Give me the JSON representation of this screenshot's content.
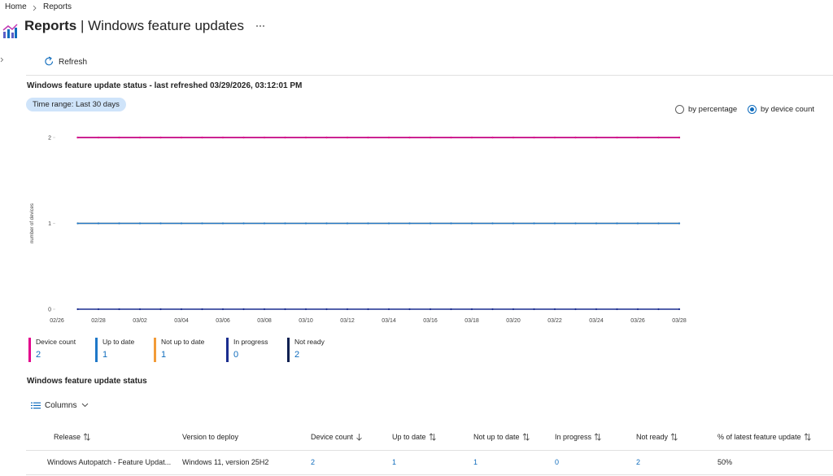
{
  "breadcrumb": [
    "Home",
    "Reports"
  ],
  "header": {
    "title": "Reports",
    "separator": "|",
    "subtitle": "Windows feature updates"
  },
  "toolbar": {
    "refresh": "Refresh"
  },
  "status_heading": "Windows feature update status - last refreshed 03/29/2026, 03:12:01 PM",
  "time_range": {
    "label": "Time range:",
    "value": "Last 30 days"
  },
  "view_options": [
    {
      "label": "by percentage",
      "selected": false
    },
    {
      "label": "by device count",
      "selected": true
    }
  ],
  "chart_data": {
    "type": "line",
    "ylabel": "number of devices",
    "categories": [
      "02/26",
      null,
      "02/28",
      null,
      "03/02",
      null,
      "03/04",
      null,
      "03/06",
      null,
      "03/08",
      null,
      "03/10",
      null,
      "03/12",
      null,
      "03/14",
      null,
      "03/16",
      null,
      "03/18",
      null,
      "03/20",
      null,
      "03/22",
      null,
      "03/24",
      null,
      "03/26",
      null,
      "03/28"
    ],
    "ylim": [
      0,
      2
    ],
    "yticks": [
      0,
      1,
      2
    ],
    "series": [
      {
        "name": "Device count",
        "color": "#e3008c",
        "values": [
          null,
          2,
          2,
          2,
          2,
          2,
          2,
          2,
          2,
          2,
          2,
          2,
          2,
          2,
          2,
          2,
          2,
          2,
          2,
          2,
          2,
          2,
          2,
          2,
          2,
          2,
          2,
          2,
          2,
          2,
          2
        ]
      },
      {
        "name": "Up to date",
        "color": "#1f78c8",
        "values": [
          null,
          1,
          1,
          1,
          1,
          1,
          1,
          1,
          1,
          1,
          1,
          1,
          1,
          1,
          1,
          1,
          1,
          1,
          1,
          1,
          1,
          1,
          1,
          1,
          1,
          1,
          1,
          1,
          1,
          1,
          1
        ]
      },
      {
        "name": "Not up to date",
        "color": "#f29b38",
        "values": [
          null,
          1,
          1,
          1,
          1,
          1,
          1,
          1,
          1,
          1,
          1,
          1,
          1,
          1,
          1,
          1,
          1,
          1,
          1,
          1,
          1,
          1,
          1,
          1,
          1,
          1,
          1,
          1,
          1,
          1,
          1
        ]
      },
      {
        "name": "In progress",
        "color": "#1a2d8f",
        "values": [
          null,
          0,
          0,
          0,
          0,
          0,
          0,
          0,
          0,
          0,
          0,
          0,
          0,
          0,
          0,
          0,
          0,
          0,
          0,
          0,
          0,
          0,
          0,
          0,
          0,
          0,
          0,
          0,
          0,
          0,
          0
        ]
      },
      {
        "name": "Not ready",
        "color": "#0e2050",
        "values": [
          null,
          2,
          2,
          2,
          2,
          2,
          2,
          2,
          2,
          2,
          2,
          2,
          2,
          2,
          2,
          2,
          2,
          2,
          2,
          2,
          2,
          2,
          2,
          2,
          2,
          2,
          2,
          2,
          2,
          2,
          2
        ]
      }
    ]
  },
  "summary": [
    {
      "label": "Device count",
      "value": 2
    },
    {
      "label": "Up to date",
      "value": 1
    },
    {
      "label": "Not up to date",
      "value": 1
    },
    {
      "label": "In progress",
      "value": 0
    },
    {
      "label": "Not ready",
      "value": 2
    }
  ],
  "table_heading": "Windows feature update status",
  "columns_button": "Columns",
  "table": {
    "columns": [
      "Release",
      "Version to deploy",
      "Device count",
      "Up to date",
      "Not up to date",
      "In progress",
      "Not ready",
      "% of latest feature update"
    ],
    "sort": {
      "column": 2,
      "direction": "desc"
    },
    "rows": [
      [
        "Windows Autopatch - Feature Updat...",
        "Windows 11, version 25H2",
        2,
        1,
        1,
        0,
        2,
        "50%"
      ]
    ]
  }
}
